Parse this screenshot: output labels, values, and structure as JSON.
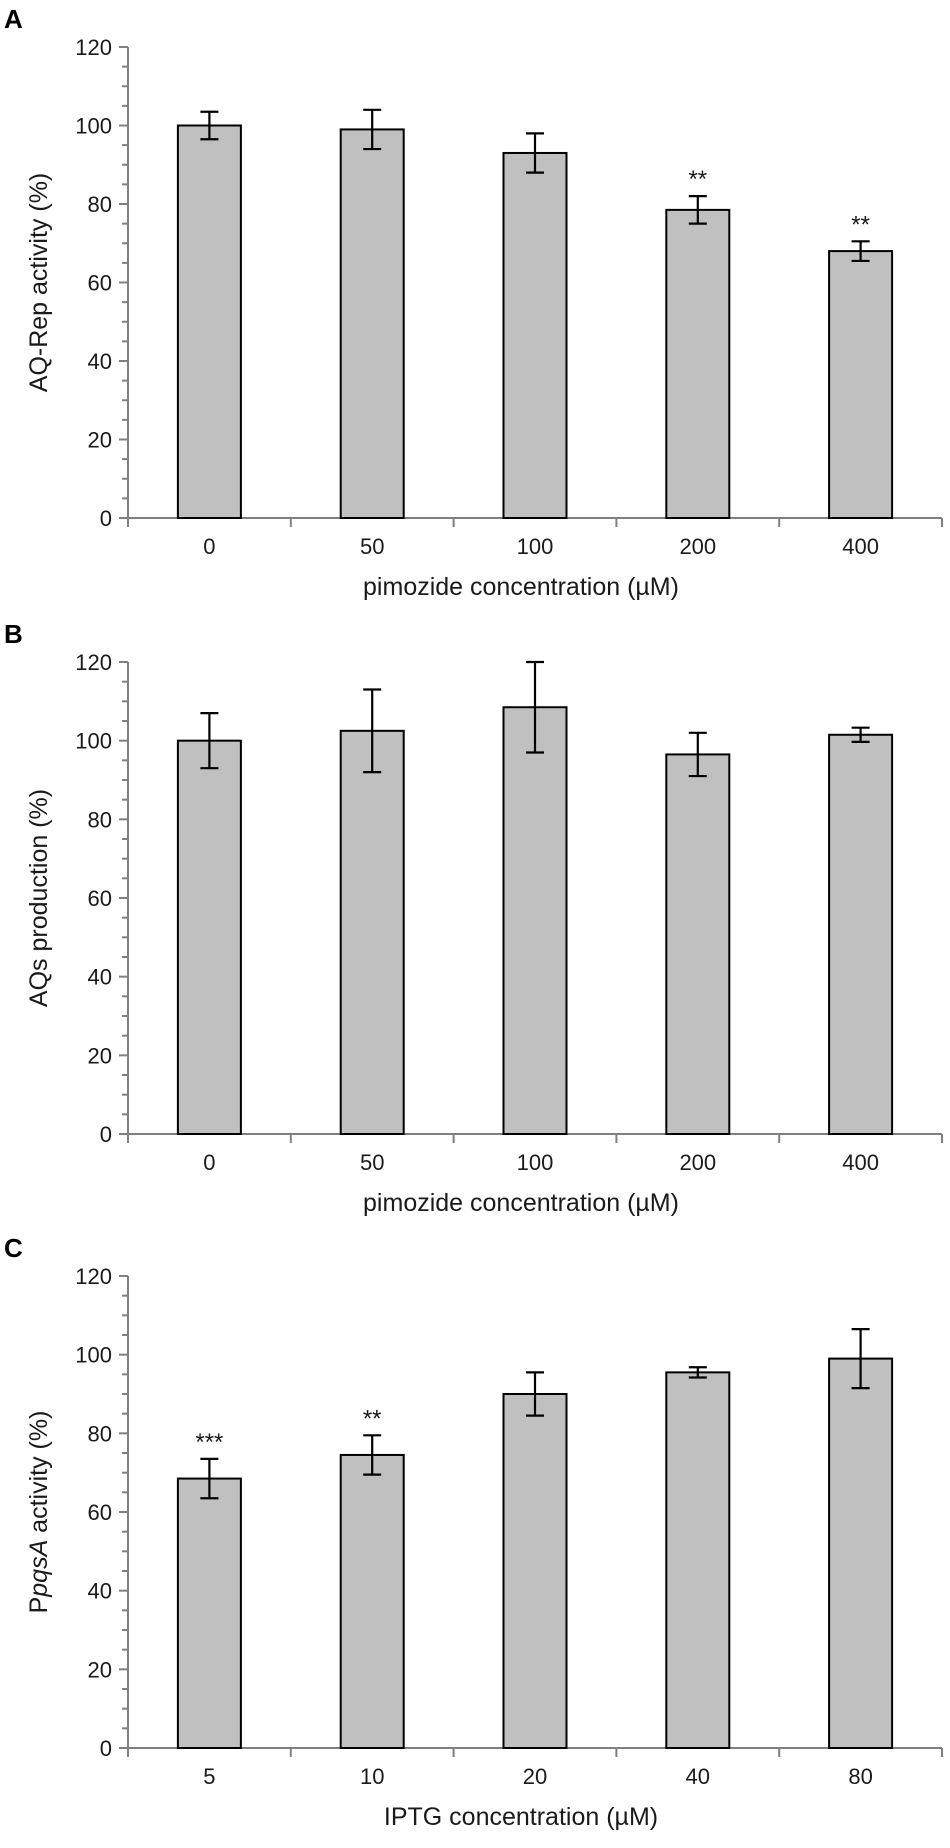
{
  "chart_data": [
    {
      "panel": "A",
      "type": "bar",
      "categories": [
        "0",
        "50",
        "100",
        "200",
        "400"
      ],
      "values": [
        100,
        99,
        93,
        78.5,
        68
      ],
      "errors": [
        3.5,
        5,
        5,
        3.5,
        2.5
      ],
      "significance": [
        "",
        "",
        "",
        "**",
        "**"
      ],
      "xlabel": "pimozide concentration (µM)",
      "ylabel": "AQ-Rep activity (%)",
      "ylabel_italic": "",
      "ylabel_suffix": "",
      "ylim": [
        0,
        120
      ],
      "yticks": [
        0,
        20,
        40,
        60,
        80,
        100,
        120
      ]
    },
    {
      "panel": "B",
      "type": "bar",
      "categories": [
        "0",
        "50",
        "100",
        "200",
        "400"
      ],
      "values": [
        100,
        102.5,
        108.5,
        96.5,
        101.5
      ],
      "errors": [
        7,
        10.5,
        11.5,
        5.5,
        1.8
      ],
      "significance": [
        "",
        "",
        "",
        "",
        ""
      ],
      "xlabel": "pimozide concentration (µM)",
      "ylabel": "AQs production (%)",
      "ylabel_italic": "",
      "ylabel_suffix": "",
      "ylim": [
        0,
        120
      ],
      "yticks": [
        0,
        20,
        40,
        60,
        80,
        100,
        120
      ]
    },
    {
      "panel": "C",
      "type": "bar",
      "categories": [
        "5",
        "10",
        "20",
        "40",
        "80"
      ],
      "values": [
        68.5,
        74.5,
        90,
        95.5,
        99
      ],
      "errors": [
        5,
        5,
        5.5,
        1.3,
        7.5
      ],
      "significance": [
        "***",
        "**",
        "",
        "",
        ""
      ],
      "xlabel": "IPTG concentration (µM)",
      "ylabel": "P",
      "ylabel_italic": "pqsA",
      "ylabel_suffix": " activity (%)",
      "ylim": [
        0,
        120
      ],
      "yticks": [
        0,
        20,
        40,
        60,
        80,
        100,
        120
      ]
    }
  ]
}
